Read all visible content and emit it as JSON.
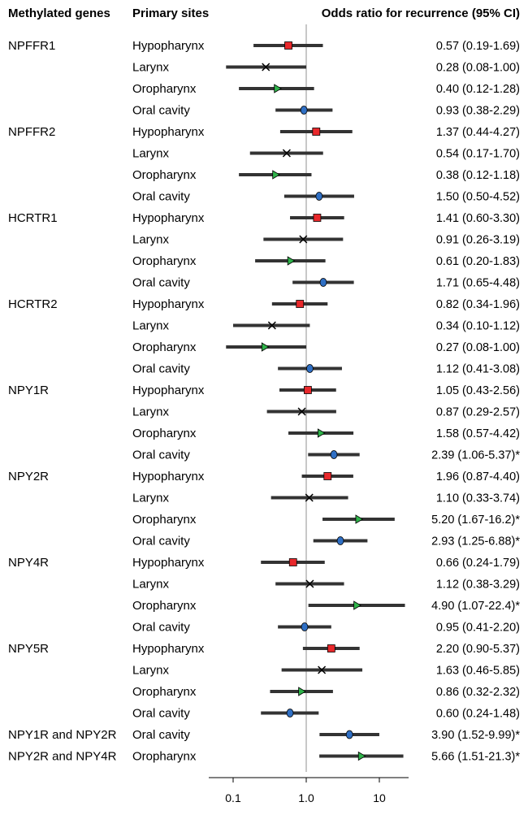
{
  "chart_data": {
    "type": "forest",
    "headers": {
      "genes": "Methylated genes",
      "sites": "Primary sites",
      "odds": "Odds ratio for recurrence (95% CI)"
    },
    "x_scale": "log10",
    "xlim": [
      0.03,
      30
    ],
    "x_ticks": [
      {
        "value": 0.1,
        "label": "0.1"
      },
      {
        "value": 1.0,
        "label": "1.0"
      },
      {
        "value": 10,
        "label": "10"
      }
    ],
    "reference_line": 1.0,
    "site_markers": {
      "Hypopharynx": {
        "shape": "square",
        "color": "#e8282b"
      },
      "Larynx": {
        "shape": "cross",
        "color": "#000000"
      },
      "Oropharynx": {
        "shape": "triangle",
        "color": "#2fb34a"
      },
      "Oral cavity": {
        "shape": "circle",
        "color": "#2f6fc4"
      }
    },
    "groups": [
      {
        "gene": "NPFFR1",
        "rows": [
          {
            "site": "Hypopharynx",
            "or": 0.57,
            "lo": 0.19,
            "hi": 1.69,
            "text": "0.57 (0.19-1.69)"
          },
          {
            "site": "Larynx",
            "or": 0.28,
            "lo": 0.08,
            "hi": 1.0,
            "text": "0.28 (0.08-1.00)"
          },
          {
            "site": "Oropharynx",
            "or": 0.4,
            "lo": 0.12,
            "hi": 1.28,
            "text": "0.40 (0.12-1.28)"
          },
          {
            "site": "Oral cavity",
            "or": 0.93,
            "lo": 0.38,
            "hi": 2.29,
            "text": "0.93 (0.38-2.29)"
          }
        ]
      },
      {
        "gene": "NPFFR2",
        "rows": [
          {
            "site": "Hypopharynx",
            "or": 1.37,
            "lo": 0.44,
            "hi": 4.27,
            "text": "1.37 (0.44-4.27)"
          },
          {
            "site": "Larynx",
            "or": 0.54,
            "lo": 0.17,
            "hi": 1.7,
            "text": "0.54 (0.17-1.70)"
          },
          {
            "site": "Oropharynx",
            "or": 0.38,
            "lo": 0.12,
            "hi": 1.18,
            "text": "0.38 (0.12-1.18)"
          },
          {
            "site": "Oral cavity",
            "or": 1.5,
            "lo": 0.5,
            "hi": 4.52,
            "text": "1.50 (0.50-4.52)"
          }
        ]
      },
      {
        "gene": "HCRTR1",
        "rows": [
          {
            "site": "Hypopharynx",
            "or": 1.41,
            "lo": 0.6,
            "hi": 3.3,
            "text": "1.41 (0.60-3.30)"
          },
          {
            "site": "Larynx",
            "or": 0.91,
            "lo": 0.26,
            "hi": 3.19,
            "text": "0.91 (0.26-3.19)"
          },
          {
            "site": "Oropharynx",
            "or": 0.61,
            "lo": 0.2,
            "hi": 1.83,
            "text": "0.61 (0.20-1.83)"
          },
          {
            "site": "Oral cavity",
            "or": 1.71,
            "lo": 0.65,
            "hi": 4.48,
            "text": "1.71 (0.65-4.48)"
          }
        ]
      },
      {
        "gene": "HCRTR2",
        "rows": [
          {
            "site": "Hypopharynx",
            "or": 0.82,
            "lo": 0.34,
            "hi": 1.96,
            "text": "0.82 (0.34-1.96)"
          },
          {
            "site": "Larynx",
            "or": 0.34,
            "lo": 0.1,
            "hi": 1.12,
            "text": "0.34 (0.10-1.12)"
          },
          {
            "site": "Oropharynx",
            "or": 0.27,
            "lo": 0.08,
            "hi": 1.0,
            "text": "0.27 (0.08-1.00)"
          },
          {
            "site": "Oral cavity",
            "or": 1.12,
            "lo": 0.41,
            "hi": 3.08,
            "text": "1.12 (0.41-3.08)"
          }
        ]
      },
      {
        "gene": "NPY1R",
        "rows": [
          {
            "site": "Hypopharynx",
            "or": 1.05,
            "lo": 0.43,
            "hi": 2.56,
            "text": "1.05 (0.43-2.56)"
          },
          {
            "site": "Larynx",
            "or": 0.87,
            "lo": 0.29,
            "hi": 2.57,
            "text": "0.87 (0.29-2.57)"
          },
          {
            "site": "Oropharynx",
            "or": 1.58,
            "lo": 0.57,
            "hi": 4.42,
            "text": "1.58 (0.57-4.42)"
          },
          {
            "site": "Oral cavity",
            "or": 2.39,
            "lo": 1.06,
            "hi": 5.37,
            "text": "2.39 (1.06-5.37)*"
          }
        ]
      },
      {
        "gene": "NPY2R",
        "rows": [
          {
            "site": "Hypopharynx",
            "or": 1.96,
            "lo": 0.87,
            "hi": 4.4,
            "text": "1.96 (0.87-4.40)"
          },
          {
            "site": "Larynx",
            "or": 1.1,
            "lo": 0.33,
            "hi": 3.74,
            "text": "1.10 (0.33-3.74)"
          },
          {
            "site": "Oropharynx",
            "or": 5.2,
            "lo": 1.67,
            "hi": 16.2,
            "text": "5.20 (1.67-16.2)*"
          },
          {
            "site": "Oral cavity",
            "or": 2.93,
            "lo": 1.25,
            "hi": 6.88,
            "text": "2.93 (1.25-6.88)*"
          }
        ]
      },
      {
        "gene": "NPY4R",
        "rows": [
          {
            "site": "Hypopharynx",
            "or": 0.66,
            "lo": 0.24,
            "hi": 1.79,
            "text": "0.66 (0.24-1.79)"
          },
          {
            "site": "Larynx",
            "or": 1.12,
            "lo": 0.38,
            "hi": 3.29,
            "text": "1.12 (0.38-3.29)"
          },
          {
            "site": "Oropharynx",
            "or": 4.9,
            "lo": 1.07,
            "hi": 22.4,
            "text": "4.90 (1.07-22.4)*"
          },
          {
            "site": "Oral cavity",
            "or": 0.95,
            "lo": 0.41,
            "hi": 2.2,
            "text": "0.95 (0.41-2.20)"
          }
        ]
      },
      {
        "gene": "NPY5R",
        "rows": [
          {
            "site": "Hypopharynx",
            "or": 2.2,
            "lo": 0.9,
            "hi": 5.37,
            "text": "2.20 (0.90-5.37)"
          },
          {
            "site": "Larynx",
            "or": 1.63,
            "lo": 0.46,
            "hi": 5.85,
            "text": "1.63 (0.46-5.85)"
          },
          {
            "site": "Oropharynx",
            "or": 0.86,
            "lo": 0.32,
            "hi": 2.32,
            "text": "0.86 (0.32-2.32)"
          },
          {
            "site": "Oral cavity",
            "or": 0.6,
            "lo": 0.24,
            "hi": 1.48,
            "text": "0.60 (0.24-1.48)"
          }
        ]
      },
      {
        "gene": "NPY1R and NPY2R",
        "rows": [
          {
            "site": "Oral cavity",
            "or": 3.9,
            "lo": 1.52,
            "hi": 9.99,
            "text": "3.90 (1.52-9.99)*"
          }
        ]
      },
      {
        "gene": "NPY2R and NPY4R",
        "rows": [
          {
            "site": "Oropharynx",
            "or": 5.66,
            "lo": 1.51,
            "hi": 21.3,
            "text": "5.66 (1.51-21.3)*"
          }
        ]
      }
    ]
  }
}
